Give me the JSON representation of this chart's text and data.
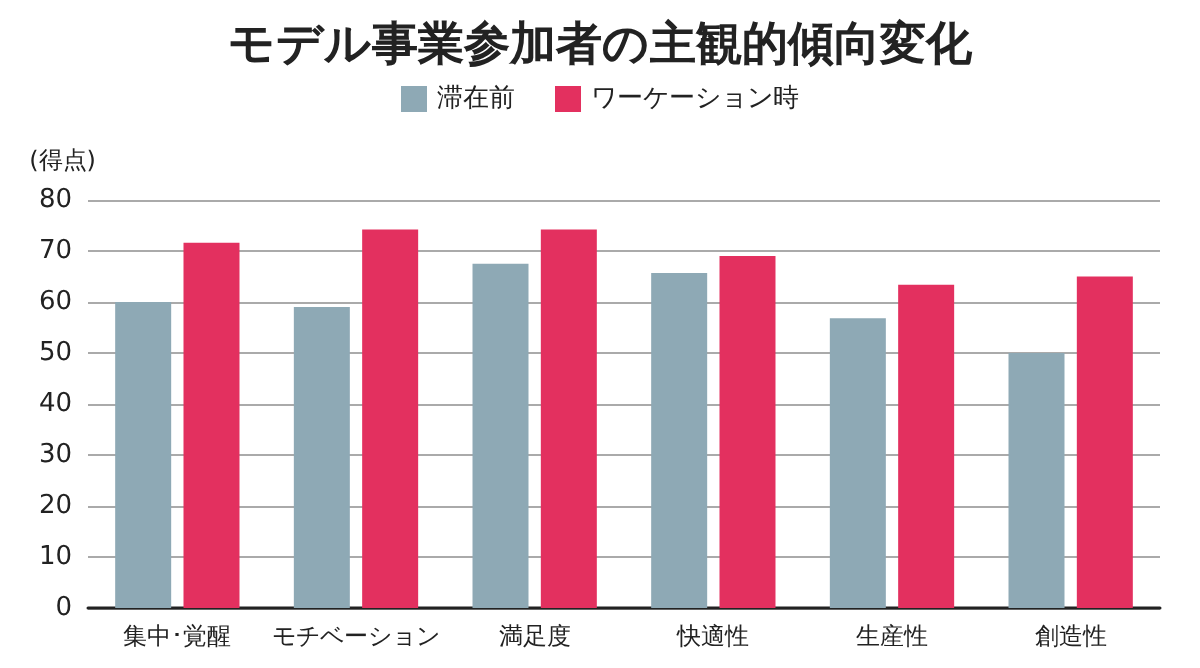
{
  "chart_data": {
    "type": "bar",
    "title": "モデル事業参加者の主観的傾向変化",
    "ylabel": "(得点)",
    "categories": [
      "集中･覚醒",
      "モチベーション",
      "満足度",
      "快適性",
      "生産性",
      "創造性"
    ],
    "series": [
      {
        "name": "滞在前",
        "color": "#8ea9b5",
        "values": [
          60,
          59,
          67.5,
          65.7,
          56.8,
          50
        ]
      },
      {
        "name": "ワーケーション時",
        "color": "#e3305f",
        "values": [
          71.6,
          74.2,
          74.2,
          69,
          63.4,
          65
        ]
      }
    ],
    "ylim": [
      0,
      80
    ],
    "yticks": [
      0,
      10,
      20,
      30,
      40,
      50,
      60,
      70,
      80
    ],
    "grid": "y",
    "legend": "top"
  }
}
